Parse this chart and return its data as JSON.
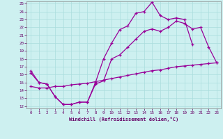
{
  "xlabel": "Windchill (Refroidissement éolien,°C)",
  "background_color": "#cdf0f0",
  "grid_color": "#aadddd",
  "line_color": "#990099",
  "xlim": [
    -0.5,
    23.5
  ],
  "ylim": [
    11.7,
    25.3
  ],
  "xticks": [
    0,
    1,
    2,
    3,
    4,
    5,
    6,
    7,
    8,
    9,
    10,
    11,
    12,
    13,
    14,
    15,
    16,
    17,
    18,
    19,
    20,
    21,
    22,
    23
  ],
  "yticks": [
    12,
    13,
    14,
    15,
    16,
    17,
    18,
    19,
    20,
    21,
    22,
    23,
    24,
    25
  ],
  "line1_x": [
    0,
    1,
    2,
    3,
    4,
    5,
    6,
    7,
    8,
    9,
    10,
    11,
    12,
    13,
    14,
    15,
    16,
    17,
    18,
    19,
    20
  ],
  "line1_y": [
    16.5,
    15.0,
    14.8,
    13.2,
    12.2,
    12.2,
    12.5,
    12.5,
    15.0,
    18.0,
    20.0,
    21.7,
    22.2,
    23.8,
    24.0,
    25.2,
    23.5,
    23.0,
    23.2,
    23.0,
    19.8
  ],
  "line2_x": [
    0,
    1,
    2,
    3,
    4,
    5,
    6,
    7,
    8,
    9,
    10,
    11,
    12,
    13,
    14,
    15,
    16,
    17,
    18,
    19,
    20,
    21,
    22,
    23
  ],
  "line2_y": [
    16.2,
    15.0,
    14.8,
    13.2,
    12.2,
    12.2,
    12.5,
    12.5,
    14.8,
    15.2,
    18.0,
    18.5,
    19.5,
    20.5,
    21.5,
    21.8,
    21.5,
    22.0,
    22.8,
    22.5,
    21.8,
    22.0,
    19.5,
    17.5
  ],
  "line3_x": [
    0,
    1,
    2,
    3,
    4,
    5,
    6,
    7,
    8,
    9,
    10,
    11,
    12,
    13,
    14,
    15,
    16,
    17,
    18,
    19,
    20,
    21,
    22,
    23
  ],
  "line3_y": [
    14.5,
    14.3,
    14.3,
    14.5,
    14.5,
    14.7,
    14.8,
    14.9,
    15.1,
    15.3,
    15.5,
    15.7,
    15.9,
    16.1,
    16.3,
    16.5,
    16.6,
    16.8,
    17.0,
    17.1,
    17.2,
    17.3,
    17.4,
    17.5
  ]
}
